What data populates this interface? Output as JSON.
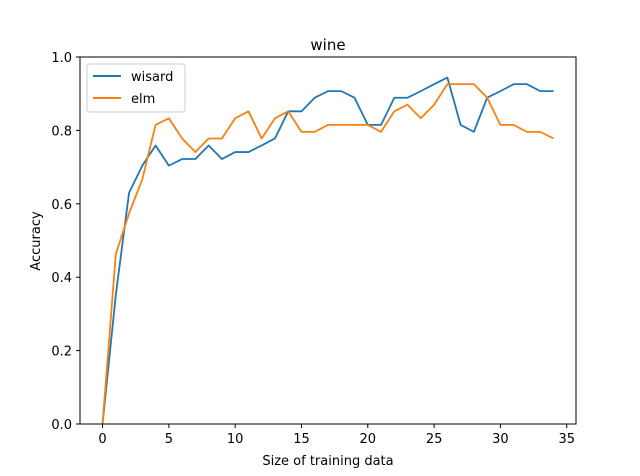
{
  "chart_data": {
    "type": "line",
    "title": "wine",
    "xlabel": "Size of training data",
    "ylabel": "Accuracy",
    "xlim": [
      -1.7,
      35.7
    ],
    "ylim": [
      0.0,
      1.0
    ],
    "xticks": [
      0,
      5,
      10,
      15,
      20,
      25,
      30,
      35
    ],
    "yticks": [
      0.0,
      0.2,
      0.4,
      0.6,
      0.8,
      1.0
    ],
    "xtick_labels": [
      "0",
      "5",
      "10",
      "15",
      "20",
      "25",
      "30",
      "35"
    ],
    "ytick_labels": [
      "0.0",
      "0.2",
      "0.4",
      "0.6",
      "0.8",
      "1.0"
    ],
    "legend_position": "upper-left",
    "grid": false,
    "x": [
      0,
      1,
      2,
      3,
      4,
      5,
      6,
      7,
      8,
      9,
      10,
      11,
      12,
      13,
      14,
      15,
      16,
      17,
      18,
      19,
      20,
      21,
      22,
      23,
      24,
      25,
      26,
      27,
      28,
      29,
      30,
      31,
      32,
      33,
      34
    ],
    "series": [
      {
        "name": "wisard",
        "color": "#1f77b4",
        "values": [
          0.0,
          0.352,
          0.63,
          0.704,
          0.759,
          0.704,
          0.722,
          0.722,
          0.759,
          0.722,
          0.741,
          0.741,
          0.759,
          0.778,
          0.852,
          0.852,
          0.889,
          0.907,
          0.907,
          0.889,
          0.815,
          0.815,
          0.889,
          0.889,
          0.907,
          0.926,
          0.944,
          0.815,
          0.796,
          0.889,
          0.907,
          0.926,
          0.926,
          0.907,
          0.907
        ]
      },
      {
        "name": "elm",
        "color": "#ff7f0e",
        "values": [
          0.0,
          0.463,
          0.574,
          0.667,
          0.815,
          0.833,
          0.778,
          0.741,
          0.778,
          0.778,
          0.833,
          0.852,
          0.778,
          0.833,
          0.852,
          0.796,
          0.796,
          0.815,
          0.815,
          0.815,
          0.815,
          0.796,
          0.852,
          0.87,
          0.833,
          0.87,
          0.926,
          0.926,
          0.926,
          0.889,
          0.815,
          0.815,
          0.796,
          0.796,
          0.778
        ]
      }
    ]
  }
}
